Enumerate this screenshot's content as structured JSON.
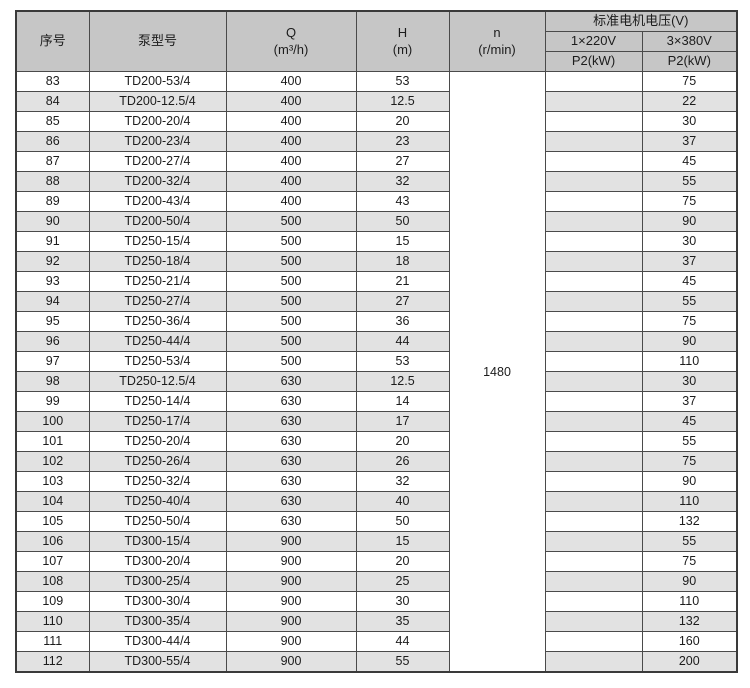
{
  "table": {
    "headers": {
      "col_serial": "序号",
      "col_model": "泵型号",
      "col_q_symbol": "Q",
      "col_q_unit": "(m³/h)",
      "col_h_symbol": "H",
      "col_h_unit": "(m)",
      "col_n_symbol": "n",
      "col_n_unit": "(r/min)",
      "voltage_group": "标准电机电压(V)",
      "voltage_220": "1×220V",
      "voltage_380": "3×380V",
      "p2_220": "P2(kW)",
      "p2_380": "P2(kW)"
    },
    "n_value": "1480",
    "rows": [
      {
        "no": "83",
        "model": "TD200-53/4",
        "q": "400",
        "h": "53",
        "p2_220": "",
        "p2_380": "75"
      },
      {
        "no": "84",
        "model": "TD200-12.5/4",
        "q": "400",
        "h": "12.5",
        "p2_220": "",
        "p2_380": "22"
      },
      {
        "no": "85",
        "model": "TD200-20/4",
        "q": "400",
        "h": "20",
        "p2_220": "",
        "p2_380": "30"
      },
      {
        "no": "86",
        "model": "TD200-23/4",
        "q": "400",
        "h": "23",
        "p2_220": "",
        "p2_380": "37"
      },
      {
        "no": "87",
        "model": "TD200-27/4",
        "q": "400",
        "h": "27",
        "p2_220": "",
        "p2_380": "45"
      },
      {
        "no": "88",
        "model": "TD200-32/4",
        "q": "400",
        "h": "32",
        "p2_220": "",
        "p2_380": "55"
      },
      {
        "no": "89",
        "model": "TD200-43/4",
        "q": "400",
        "h": "43",
        "p2_220": "",
        "p2_380": "75"
      },
      {
        "no": "90",
        "model": "TD200-50/4",
        "q": "500",
        "h": "50",
        "p2_220": "",
        "p2_380": "90"
      },
      {
        "no": "91",
        "model": "TD250-15/4",
        "q": "500",
        "h": "15",
        "p2_220": "",
        "p2_380": "30"
      },
      {
        "no": "92",
        "model": "TD250-18/4",
        "q": "500",
        "h": "18",
        "p2_220": "",
        "p2_380": "37"
      },
      {
        "no": "93",
        "model": "TD250-21/4",
        "q": "500",
        "h": "21",
        "p2_220": "",
        "p2_380": "45"
      },
      {
        "no": "94",
        "model": "TD250-27/4",
        "q": "500",
        "h": "27",
        "p2_220": "",
        "p2_380": "55"
      },
      {
        "no": "95",
        "model": "TD250-36/4",
        "q": "500",
        "h": "36",
        "p2_220": "",
        "p2_380": "75"
      },
      {
        "no": "96",
        "model": "TD250-44/4",
        "q": "500",
        "h": "44",
        "p2_220": "",
        "p2_380": "90"
      },
      {
        "no": "97",
        "model": "TD250-53/4",
        "q": "500",
        "h": "53",
        "p2_220": "",
        "p2_380": "110"
      },
      {
        "no": "98",
        "model": "TD250-12.5/4",
        "q": "630",
        "h": "12.5",
        "p2_220": "",
        "p2_380": "30"
      },
      {
        "no": "99",
        "model": "TD250-14/4",
        "q": "630",
        "h": "14",
        "p2_220": "",
        "p2_380": "37"
      },
      {
        "no": "100",
        "model": "TD250-17/4",
        "q": "630",
        "h": "17",
        "p2_220": "",
        "p2_380": "45"
      },
      {
        "no": "101",
        "model": "TD250-20/4",
        "q": "630",
        "h": "20",
        "p2_220": "",
        "p2_380": "55"
      },
      {
        "no": "102",
        "model": "TD250-26/4",
        "q": "630",
        "h": "26",
        "p2_220": "",
        "p2_380": "75"
      },
      {
        "no": "103",
        "model": "TD250-32/4",
        "q": "630",
        "h": "32",
        "p2_220": "",
        "p2_380": "90"
      },
      {
        "no": "104",
        "model": "TD250-40/4",
        "q": "630",
        "h": "40",
        "p2_220": "",
        "p2_380": "110"
      },
      {
        "no": "105",
        "model": "TD250-50/4",
        "q": "630",
        "h": "50",
        "p2_220": "",
        "p2_380": "132"
      },
      {
        "no": "106",
        "model": "TD300-15/4",
        "q": "900",
        "h": "15",
        "p2_220": "",
        "p2_380": "55"
      },
      {
        "no": "107",
        "model": "TD300-20/4",
        "q": "900",
        "h": "20",
        "p2_220": "",
        "p2_380": "75"
      },
      {
        "no": "108",
        "model": "TD300-25/4",
        "q": "900",
        "h": "25",
        "p2_220": "",
        "p2_380": "90"
      },
      {
        "no": "109",
        "model": "TD300-30/4",
        "q": "900",
        "h": "30",
        "p2_220": "",
        "p2_380": "110"
      },
      {
        "no": "110",
        "model": "TD300-35/4",
        "q": "900",
        "h": "35",
        "p2_220": "",
        "p2_380": "132"
      },
      {
        "no": "111",
        "model": "TD300-44/4",
        "q": "900",
        "h": "44",
        "p2_220": "",
        "p2_380": "160"
      },
      {
        "no": "112",
        "model": "TD300-55/4",
        "q": "900",
        "h": "55",
        "p2_220": "",
        "p2_380": "200"
      }
    ]
  }
}
